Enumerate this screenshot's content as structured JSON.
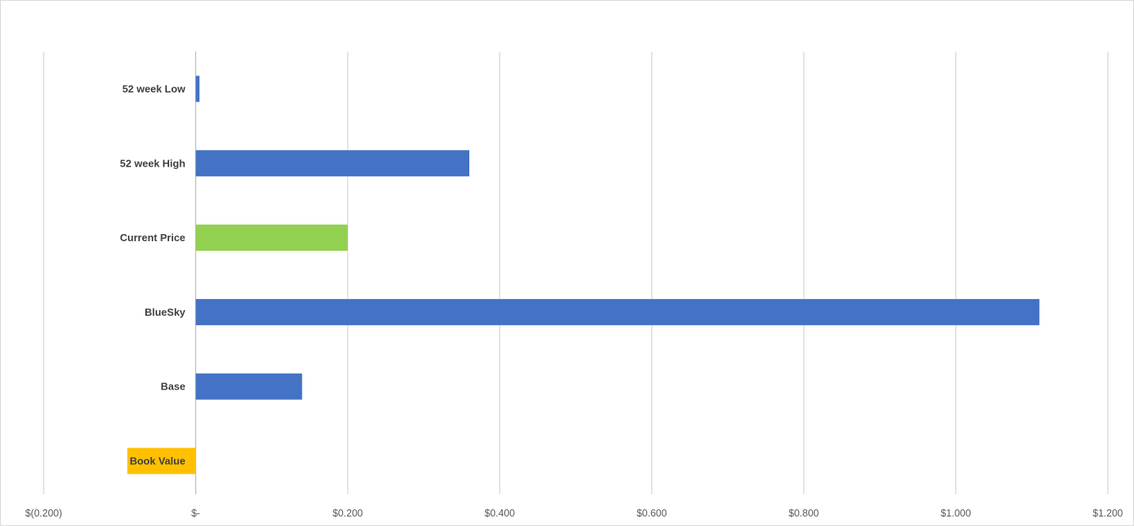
{
  "chart_data": {
    "type": "bar",
    "orientation": "horizontal",
    "categories": [
      "52 week Low",
      "52 week High",
      "Current Price",
      "BlueSky",
      "Base",
      "Book Value"
    ],
    "values": [
      0.005,
      0.36,
      0.2,
      1.11,
      0.14,
      -0.09
    ],
    "bar_colors": [
      "#4472C4",
      "#4472C4",
      "#92D050",
      "#4472C4",
      "#4472C4",
      "#FFC000"
    ],
    "xlim": [
      -0.2,
      1.2
    ],
    "x_ticks": [
      -0.2,
      0,
      0.2,
      0.4,
      0.6,
      0.8,
      1.0,
      1.2
    ],
    "x_tick_labels": [
      "$(0.200)",
      "$-",
      "$0.200",
      "$0.400",
      "$0.600",
      "$0.800",
      "$1.000",
      "$1.200"
    ],
    "grid": true,
    "legend": false,
    "title": "",
    "xlabel": "",
    "ylabel": ""
  },
  "colors": {
    "gridline": "#d9d9d9",
    "axis_line": "#bfbfbf",
    "label_text": "#404040",
    "tick_text": "#595959"
  }
}
